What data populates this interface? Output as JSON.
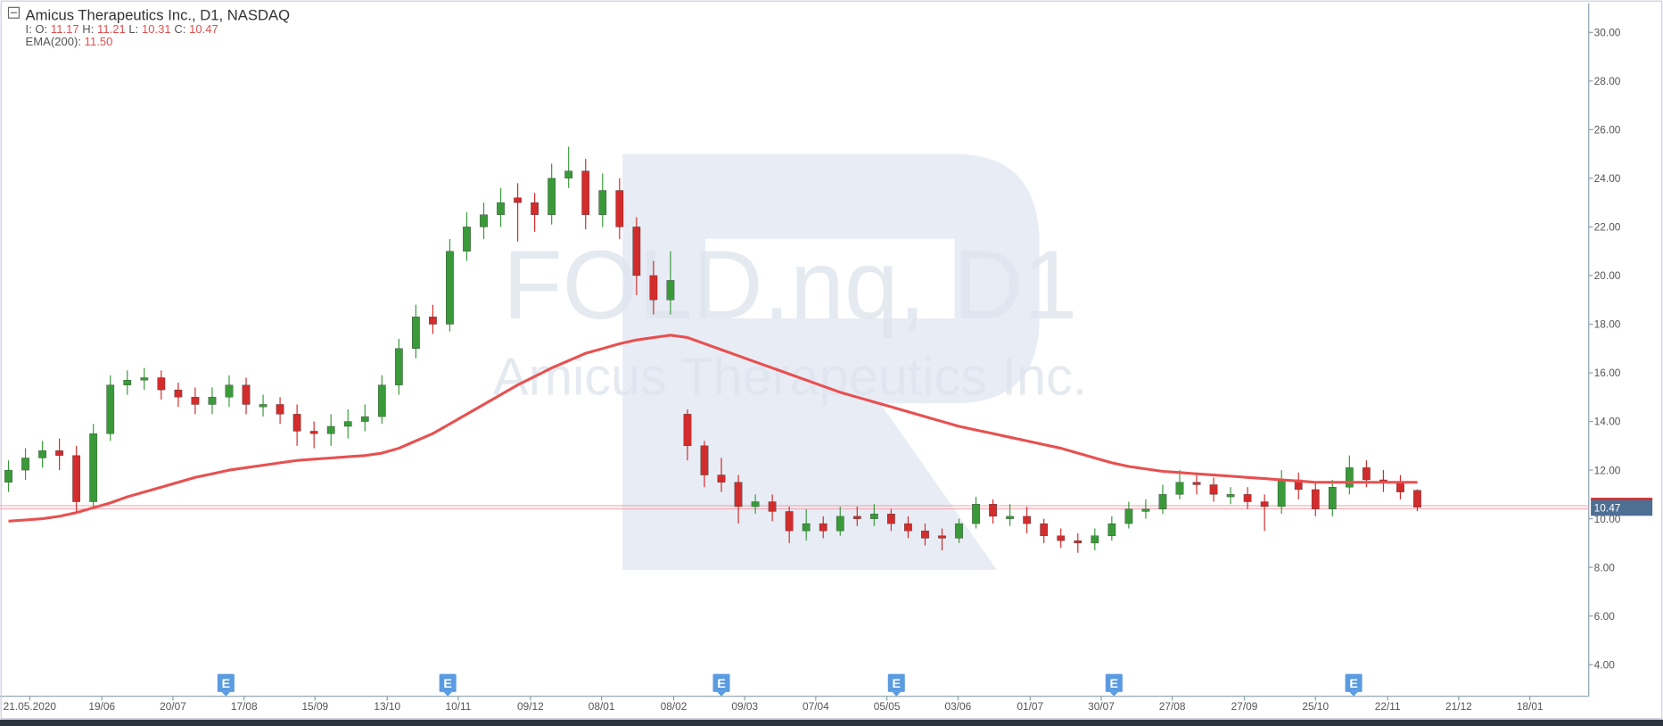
{
  "chart_data": {
    "type": "candlestick",
    "title": "Amicus Therapeutics Inc.,",
    "timeframe": "D1,",
    "exchange": "NASDAQ",
    "ohlc_labels": [
      "I: O:",
      "H:",
      "L:",
      "C:"
    ],
    "indicator": {
      "name": "EMA(200):",
      "value_label": "11.50"
    },
    "watermark": [
      "FOLD.nq, D1",
      "Amicus Therapeutics Inc."
    ],
    "up_color": "#3a9a3a",
    "down_color": "#d22c2c",
    "ylim": [
      2.7,
      31.2
    ],
    "yticks": [
      {
        "value": 4,
        "label": "4.00"
      },
      {
        "value": 6,
        "label": "6.00"
      },
      {
        "value": 8,
        "label": "8.00"
      },
      {
        "value": 10,
        "label": "10.00"
      },
      {
        "value": 12,
        "label": "12.00"
      },
      {
        "value": 14,
        "label": "14.00"
      },
      {
        "value": 16,
        "label": "16.00"
      },
      {
        "value": 18,
        "label": "18.00"
      },
      {
        "value": 20,
        "label": "20.00"
      },
      {
        "value": 22,
        "label": "22.00"
      },
      {
        "value": 24,
        "label": "24.00"
      },
      {
        "value": 26,
        "label": "26.00"
      },
      {
        "value": 28,
        "label": "28.00"
      },
      {
        "value": 30,
        "label": "30.00"
      }
    ],
    "xlim": [
      -0.5,
      93.1
    ],
    "xticks": [
      {
        "value": 1.25,
        "label": "21.05.2020"
      },
      {
        "value": 5.5,
        "label": "19/06"
      },
      {
        "value": 9.69,
        "label": "20/07"
      },
      {
        "value": 13.88,
        "label": "17/08"
      },
      {
        "value": 18.06,
        "label": "15/09"
      },
      {
        "value": 22.31,
        "label": "13/10"
      },
      {
        "value": 26.5,
        "label": "10/11"
      },
      {
        "value": 30.75,
        "label": "09/12"
      },
      {
        "value": 34.94,
        "label": "08/01"
      },
      {
        "value": 39.19,
        "label": "08/02"
      },
      {
        "value": 43.38,
        "label": "09/03"
      },
      {
        "value": 47.56,
        "label": "07/04"
      },
      {
        "value": 51.75,
        "label": "05/05"
      },
      {
        "value": 55.94,
        "label": "03/06"
      },
      {
        "value": 60.19,
        "label": "01/07"
      },
      {
        "value": 64.38,
        "label": "30/07"
      },
      {
        "value": 68.56,
        "label": "27/08"
      },
      {
        "value": 72.81,
        "label": "27/09"
      },
      {
        "value": 77,
        "label": "25/10"
      },
      {
        "value": 81.25,
        "label": "22/11"
      },
      {
        "value": 85.44,
        "label": "21/12"
      },
      {
        "value": 89.63,
        "label": "18/01"
      }
    ],
    "events": [
      {
        "x": 12.81,
        "label": "E"
      },
      {
        "x": 25.88,
        "label": "E"
      },
      {
        "x": 42,
        "label": "E"
      },
      {
        "x": 52.31,
        "label": "E"
      },
      {
        "x": 65.13,
        "label": "E"
      },
      {
        "x": 79.25,
        "label": "E"
      }
    ],
    "open": [
      11.5,
      12.0,
      12.5,
      12.8,
      12.6,
      10.7,
      13.5,
      15.5,
      15.7,
      15.8,
      15.3,
      15.0,
      14.7,
      15.0,
      15.5,
      14.6,
      14.7,
      14.3,
      13.6,
      13.5,
      13.8,
      14.0,
      14.2,
      15.5,
      17.0,
      18.3,
      18.0,
      21.0,
      22.0,
      22.5,
      23.2,
      23.0,
      22.5,
      24.0,
      24.3,
      22.5,
      23.5,
      22.0,
      20.0,
      19.0,
      14.3,
      13.0,
      11.8,
      11.5,
      10.5,
      10.7,
      10.3,
      9.5,
      9.8,
      9.5,
      10.1,
      10.0,
      10.2,
      9.8,
      9.5,
      9.3,
      9.2,
      9.8,
      10.6,
      10.0,
      10.1,
      9.8,
      9.3,
      9.1,
      9.0,
      9.3,
      9.8,
      10.3,
      10.4,
      11.0,
      11.5,
      11.4,
      10.9,
      11.0,
      10.7,
      10.5,
      11.6,
      11.2,
      10.4,
      11.3,
      12.1,
      11.6,
      11.5,
      11.17
    ],
    "high": [
      12.4,
      12.9,
      13.2,
      13.3,
      13.0,
      13.9,
      15.9,
      16.1,
      16.2,
      16.1,
      15.6,
      15.4,
      15.4,
      15.9,
      15.8,
      15.1,
      15.0,
      14.7,
      14.0,
      14.3,
      14.5,
      14.7,
      15.9,
      17.4,
      18.8,
      18.8,
      21.5,
      22.6,
      23.0,
      23.6,
      23.8,
      23.4,
      24.6,
      25.3,
      24.8,
      24.2,
      24.0,
      22.4,
      20.6,
      21.0,
      14.5,
      13.2,
      12.5,
      11.8,
      11.0,
      11.0,
      10.5,
      10.4,
      10.1,
      10.5,
      10.5,
      10.6,
      10.4,
      10.1,
      9.8,
      9.6,
      10.0,
      10.9,
      10.8,
      10.6,
      10.5,
      10.0,
      9.6,
      9.4,
      9.6,
      10.1,
      10.7,
      10.8,
      11.4,
      12.0,
      11.9,
      11.7,
      11.3,
      11.3,
      11.0,
      12.0,
      11.9,
      11.5,
      11.6,
      12.6,
      12.4,
      12.0,
      11.8,
      11.21
    ],
    "low": [
      11.1,
      11.6,
      12.1,
      12.0,
      10.3,
      10.5,
      13.2,
      15.1,
      15.3,
      14.9,
      14.6,
      14.3,
      14.3,
      14.6,
      14.3,
      14.2,
      13.9,
      13.0,
      12.9,
      13.0,
      13.3,
      13.6,
      13.9,
      15.1,
      16.6,
      17.6,
      17.7,
      20.6,
      21.5,
      22.0,
      21.4,
      21.8,
      22.1,
      23.6,
      21.9,
      22.0,
      21.5,
      19.2,
      18.4,
      18.4,
      12.4,
      11.3,
      11.1,
      9.8,
      10.2,
      9.9,
      9.0,
      9.1,
      9.2,
      9.3,
      9.7,
      9.7,
      9.5,
      9.2,
      8.9,
      8.7,
      9.0,
      9.6,
      9.8,
      9.7,
      9.4,
      9.0,
      8.8,
      8.6,
      8.7,
      9.1,
      9.6,
      10.0,
      10.2,
      10.8,
      11.0,
      10.7,
      10.6,
      10.4,
      9.5,
      10.2,
      10.8,
      10.1,
      10.1,
      11.0,
      11.3,
      11.1,
      10.8,
      10.31
    ],
    "close": [
      12.0,
      12.5,
      12.8,
      12.6,
      10.7,
      13.5,
      15.5,
      15.7,
      15.8,
      15.3,
      15.0,
      14.7,
      15.0,
      15.5,
      14.7,
      14.7,
      14.3,
      13.6,
      13.5,
      13.8,
      14.0,
      14.2,
      15.5,
      17.0,
      18.3,
      18.0,
      21.0,
      22.0,
      22.5,
      23.0,
      23.0,
      22.5,
      24.0,
      24.3,
      22.5,
      23.5,
      22.0,
      20.0,
      19.0,
      19.8,
      13.0,
      11.8,
      11.5,
      10.5,
      10.7,
      10.3,
      9.5,
      9.8,
      9.5,
      10.1,
      10.0,
      10.2,
      9.8,
      9.5,
      9.2,
      9.2,
      9.8,
      10.6,
      10.1,
      10.1,
      9.8,
      9.3,
      9.1,
      9.0,
      9.3,
      9.8,
      10.4,
      10.4,
      11.0,
      11.5,
      11.4,
      11.0,
      11.0,
      10.7,
      10.5,
      11.6,
      11.2,
      10.4,
      11.3,
      12.1,
      11.6,
      11.5,
      11.1,
      10.47
    ],
    "series": [
      {
        "name": "EMA(200)",
        "color": "#e85050",
        "values": [
          9.9,
          9.95,
          10.0,
          10.1,
          10.25,
          10.45,
          10.65,
          10.9,
          11.1,
          11.3,
          11.5,
          11.7,
          11.85,
          12.0,
          12.1,
          12.2,
          12.3,
          12.4,
          12.45,
          12.5,
          12.55,
          12.6,
          12.7,
          12.9,
          13.2,
          13.5,
          13.9,
          14.3,
          14.7,
          15.1,
          15.5,
          15.85,
          16.2,
          16.5,
          16.8,
          17.0,
          17.2,
          17.35,
          17.45,
          17.55,
          17.45,
          17.2,
          16.95,
          16.7,
          16.45,
          16.2,
          15.95,
          15.7,
          15.45,
          15.2,
          15.0,
          14.8,
          14.6,
          14.4,
          14.2,
          14.0,
          13.8,
          13.65,
          13.5,
          13.35,
          13.2,
          13.05,
          12.9,
          12.7,
          12.5,
          12.3,
          12.15,
          12.05,
          11.95,
          11.9,
          11.85,
          11.8,
          11.75,
          11.7,
          11.65,
          11.6,
          11.55,
          11.5,
          11.5,
          11.5,
          11.5,
          11.5,
          11.5,
          11.5
        ]
      }
    ]
  }
}
